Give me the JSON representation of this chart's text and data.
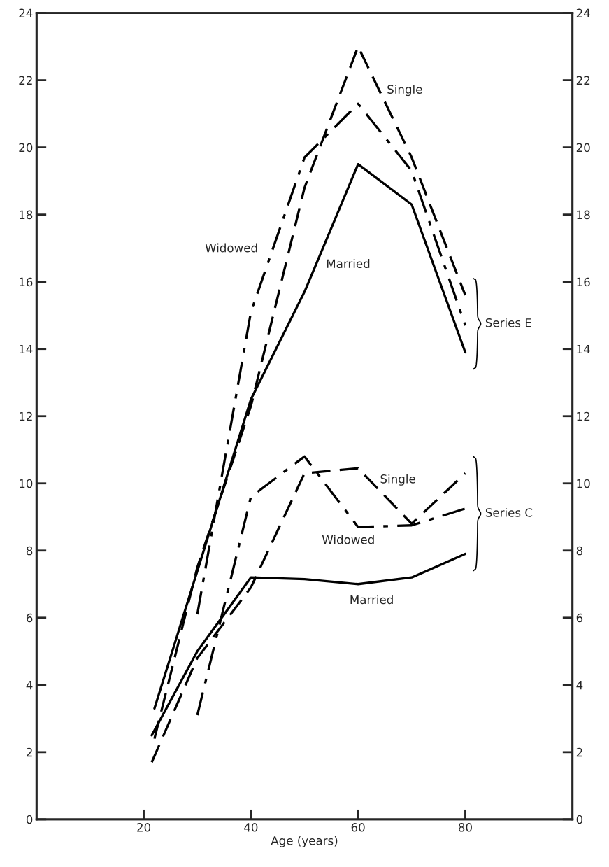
{
  "chart_data": {
    "type": "line",
    "xlabel": "Age (years)",
    "xlim": [
      0,
      100
    ],
    "xticks": [
      20,
      40,
      60,
      80
    ],
    "ylim": [
      0,
      24
    ],
    "yticks": [
      0,
      2,
      4,
      6,
      8,
      10,
      12,
      14,
      16,
      18,
      20,
      22,
      24
    ],
    "y2lim": [
      0,
      24
    ],
    "y2ticks": [
      0,
      2,
      4,
      6,
      8,
      10,
      12,
      14,
      16,
      18,
      20,
      22,
      24
    ],
    "grid": false,
    "legend": false,
    "marker": "none",
    "series": [
      {
        "name": "Married",
        "color": "#000000",
        "line_style": "solid",
        "x": [
          22,
          40,
          50,
          60,
          70,
          80
        ],
        "values": [
          3.3,
          12.5,
          15.7,
          19.5,
          18.3,
          13.9
        ]
      },
      {
        "name": "Single",
        "color": "#000000",
        "line_style": "dashed",
        "x": [
          22,
          30,
          40,
          50,
          60,
          70,
          80
        ],
        "values": [
          2.4,
          7.5,
          12.3,
          18.8,
          23.0,
          19.7,
          15.6
        ]
      },
      {
        "name": "Widowed",
        "color": "#000000",
        "line_style": "dashdot",
        "x": [
          30,
          40,
          50,
          60,
          70,
          80
        ],
        "values": [
          6.1,
          15.1,
          19.7,
          21.3,
          19.3,
          14.7
        ]
      },
      {
        "name": "Married",
        "color": "#000000",
        "line_style": "solid",
        "x": [
          21.5,
          30,
          40,
          50,
          60,
          70,
          80
        ],
        "values": [
          2.5,
          5.0,
          7.2,
          7.15,
          7.0,
          7.2,
          7.9
        ]
      },
      {
        "name": "Single",
        "color": "#000000",
        "line_style": "dashed",
        "x": [
          21.5,
          30,
          40,
          50,
          60,
          70,
          80
        ],
        "values": [
          1.7,
          4.8,
          6.9,
          10.3,
          10.45,
          8.8,
          10.3
        ]
      },
      {
        "name": "Widowed",
        "color": "#000000",
        "line_style": "dashdot",
        "x": [
          30,
          40,
          50,
          60,
          70,
          80
        ],
        "values": [
          3.1,
          9.6,
          10.8,
          8.7,
          8.75,
          9.25
        ]
      }
    ],
    "annotations": [
      "Series E",
      "Series C"
    ]
  }
}
